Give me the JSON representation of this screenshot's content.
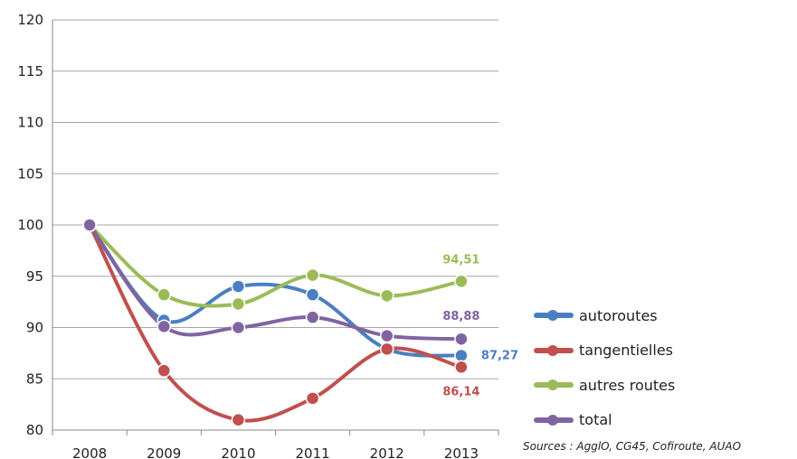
{
  "chart_data": {
    "type": "line",
    "title": "",
    "xlabel": "",
    "ylabel": "",
    "categories": [
      "2008",
      "2009",
      "2010",
      "2011",
      "2012",
      "2013"
    ],
    "ylim": [
      80,
      120
    ],
    "yticks": [
      "80",
      "85",
      "90",
      "95",
      "100",
      "105",
      "110",
      "115",
      "120"
    ],
    "grid": "horizontal",
    "legend_position": "right",
    "smooth": true,
    "series": [
      {
        "name": "autoroutes",
        "color": "#4a7fc1",
        "values": [
          100,
          90.7,
          94.0,
          93.2,
          87.9,
          87.27
        ],
        "end_label": "87,27"
      },
      {
        "name": "tangentielles",
        "color": "#c0504d",
        "values": [
          100,
          85.8,
          81.0,
          83.1,
          87.9,
          86.14
        ],
        "end_label": "86,14"
      },
      {
        "name": "autres routes",
        "color": "#9bbb59",
        "values": [
          100,
          93.2,
          92.3,
          95.1,
          93.1,
          94.51
        ],
        "end_label": "94,51"
      },
      {
        "name": "total",
        "color": "#8064a2",
        "values": [
          100,
          90.1,
          90.0,
          91.0,
          89.2,
          88.88
        ],
        "end_label": "88,88"
      }
    ]
  },
  "source": "Sources : AgglO, CG45, Cofiroute, AUAO"
}
